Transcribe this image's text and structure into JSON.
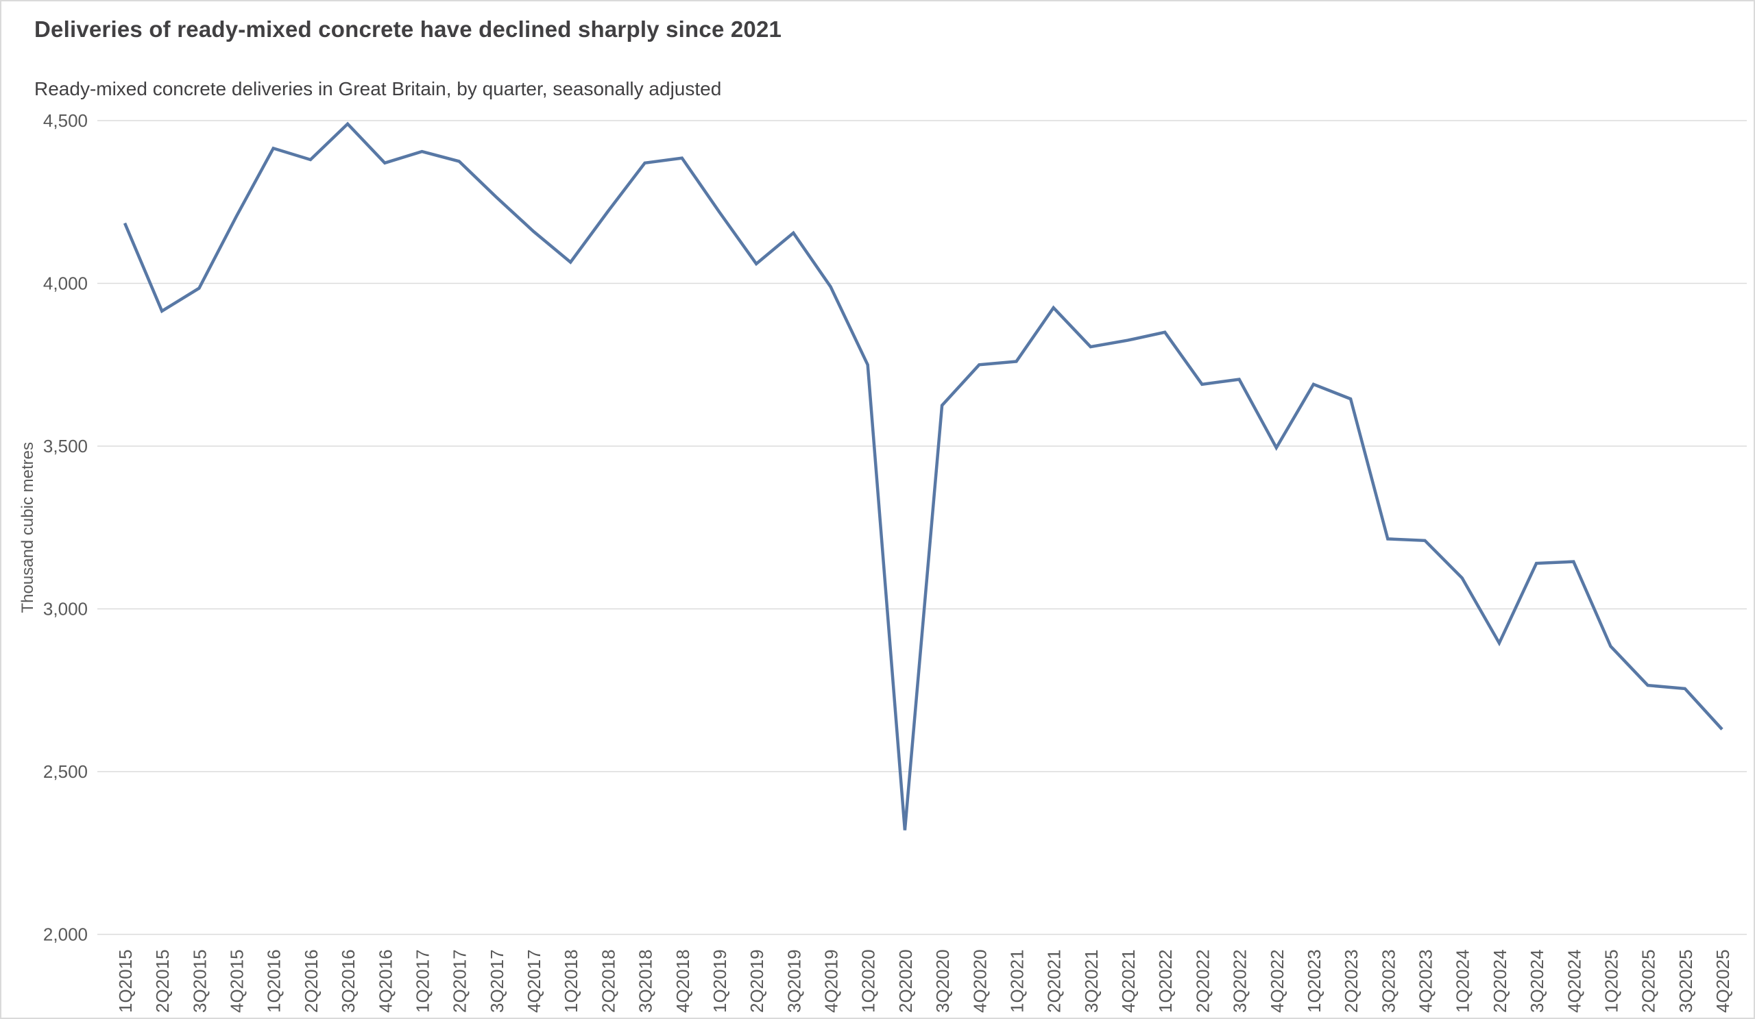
{
  "page": {
    "title": "Deliveries of ready-mixed concrete have declined sharply since 2021",
    "subtitle": "Ready-mixed concrete deliveries in Great Britain, by quarter, seasonally adjusted"
  },
  "chart_data": {
    "type": "line",
    "title": "Deliveries of ready-mixed concrete have declined sharply since 2021",
    "subtitle": "Ready-mixed concrete deliveries in Great Britain, by quarter, seasonally adjusted",
    "xlabel": "",
    "ylabel": "Thousand cubic metres",
    "categories": [
      "1Q2015",
      "2Q2015",
      "3Q2015",
      "4Q2015",
      "1Q2016",
      "2Q2016",
      "3Q2016",
      "4Q2016",
      "1Q2017",
      "2Q2017",
      "3Q2017",
      "4Q2017",
      "1Q2018",
      "2Q2018",
      "3Q2018",
      "4Q2018",
      "1Q2019",
      "2Q2019",
      "3Q2019",
      "4Q2019",
      "1Q2020",
      "2Q2020",
      "3Q2020",
      "4Q2020",
      "1Q2021",
      "2Q2021",
      "3Q2021",
      "4Q2021",
      "1Q2022",
      "2Q2022",
      "3Q2022",
      "4Q2022",
      "1Q2023",
      "2Q2023",
      "3Q2023",
      "4Q2023",
      "1Q2024",
      "2Q2024",
      "3Q2024",
      "4Q2024",
      "1Q2025",
      "2Q2025",
      "3Q2025",
      "4Q2025"
    ],
    "series": [
      {
        "name": "Ready-mixed concrete deliveries",
        "values": [
          4185,
          3915,
          3985,
          4205,
          4415,
          4380,
          4490,
          4370,
          4405,
          4375,
          4265,
          4160,
          4065,
          4220,
          4370,
          4385,
          4220,
          4060,
          4155,
          3990,
          3750,
          2320,
          3625,
          3750,
          3760,
          3925,
          3805,
          3825,
          3850,
          3690,
          3705,
          3495,
          3690,
          3645,
          3215,
          3210,
          3095,
          2895,
          3140,
          3145,
          2885,
          2765,
          2755,
          2630
        ]
      }
    ],
    "ylim": [
      2000,
      4500
    ],
    "ytick_step": 500,
    "ytick_labels": [
      "4,500",
      "4,000",
      "3,500",
      "3,000",
      "2,500",
      "2,000"
    ],
    "grid": "horizontal only",
    "legend": "none",
    "colors": {
      "line": "#5878A5",
      "grid": "#DBDBDB",
      "title_text": "#414042",
      "tick_text": "#595959"
    }
  }
}
